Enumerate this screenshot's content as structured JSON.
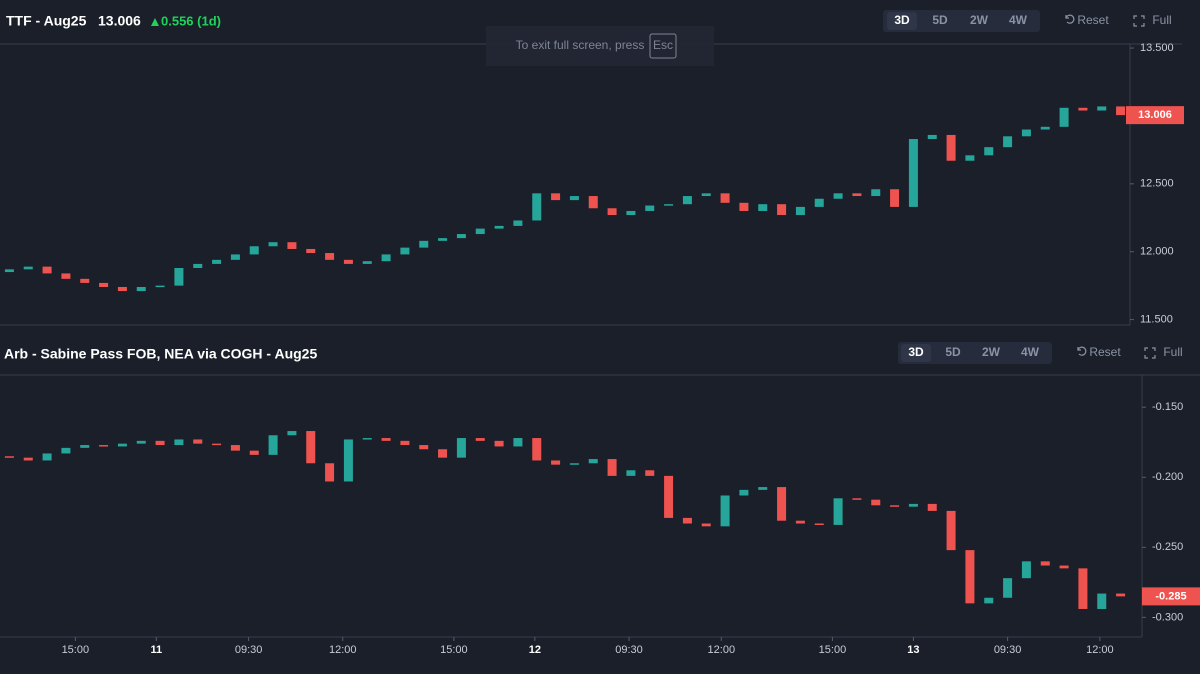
{
  "notice": {
    "text": "To exit full screen, press",
    "key": "Esc"
  },
  "chart_data": [
    {
      "type": "candlestick",
      "title": "TTF - Aug25",
      "change": "0.556 (1d)",
      "ranges": [
        "3D",
        "5D",
        "2W",
        "4W"
      ],
      "active_range": "3D",
      "buttons": [
        "Reset",
        "Full"
      ],
      "up_color": "#26a69a",
      "down_color": "#ef5350",
      "xlim": [
        -0.5,
        59.5
      ],
      "ylim": [
        11.46,
        13.53
      ],
      "yticks": [
        {
          "value": 11.5,
          "label": "11.500"
        },
        {
          "value": 12,
          "label": "12.000"
        },
        {
          "value": 12.5,
          "label": "12.500"
        },
        {
          "value": 13,
          "label": "13.000"
        },
        {
          "value": 13.5,
          "label": "13.500"
        }
      ],
      "open": [
        11.85,
        11.87,
        11.89,
        11.84,
        11.8,
        11.77,
        11.74,
        11.71,
        11.74,
        11.75,
        11.88,
        11.91,
        11.94,
        11.98,
        12.04,
        12.07,
        12.02,
        11.99,
        11.94,
        11.91,
        11.93,
        11.98,
        12.03,
        12.08,
        12.1,
        12.13,
        12.17,
        12.19,
        12.23,
        12.43,
        12.38,
        12.41,
        12.32,
        12.27,
        12.3,
        12.34,
        12.35,
        12.41,
        12.43,
        12.36,
        12.3,
        12.35,
        12.27,
        12.33,
        12.39,
        12.43,
        12.41,
        12.46,
        12.33,
        12.83,
        12.86,
        12.67,
        12.71,
        12.77,
        12.85,
        12.9,
        12.92,
        13.06,
        13.04,
        13.07
      ],
      "close": [
        11.87,
        11.89,
        11.84,
        11.8,
        11.77,
        11.74,
        11.71,
        11.74,
        11.75,
        11.88,
        11.91,
        11.94,
        11.98,
        12.04,
        12.07,
        12.02,
        11.99,
        11.94,
        11.91,
        11.93,
        11.98,
        12.03,
        12.08,
        12.1,
        12.13,
        12.17,
        12.19,
        12.23,
        12.43,
        12.38,
        12.41,
        12.32,
        12.27,
        12.3,
        12.34,
        12.35,
        12.41,
        12.43,
        12.36,
        12.3,
        12.35,
        12.27,
        12.33,
        12.39,
        12.43,
        12.41,
        12.46,
        12.33,
        12.83,
        12.86,
        12.67,
        12.71,
        12.77,
        12.85,
        12.9,
        12.92,
        13.06,
        13.04,
        13.07,
        13.006
      ]
    },
    {
      "type": "candlestick",
      "title": "Arb - Sabine Pass FOB, NEA via COGH - Aug25",
      "ranges": [
        "3D",
        "5D",
        "2W",
        "4W"
      ],
      "active_range": "3D",
      "buttons": [
        "Reset",
        "Full"
      ],
      "up_color": "#26a69a",
      "down_color": "#ef5350",
      "xlim": [
        -0.5,
        59.5
      ],
      "ylim": [
        -0.314,
        -0.127
      ],
      "yticks": [
        {
          "value": -0.15,
          "label": "-0.150"
        },
        {
          "value": -0.2,
          "label": "-0.200"
        },
        {
          "value": -0.25,
          "label": "-0.250"
        },
        {
          "value": -0.3,
          "label": "-0.300"
        }
      ],
      "xticks": [
        {
          "value": 3.5,
          "label": "15:00"
        },
        {
          "value": 7.8,
          "label": "11"
        },
        {
          "value": 12.7,
          "label": "09:30"
        },
        {
          "value": 17.7,
          "label": "12:00"
        },
        {
          "value": 23.6,
          "label": "15:00"
        },
        {
          "value": 27.9,
          "label": "12"
        },
        {
          "value": 32.9,
          "label": "09:30"
        },
        {
          "value": 37.8,
          "label": "12:00"
        },
        {
          "value": 43.7,
          "label": "15:00"
        },
        {
          "value": 48,
          "label": "13"
        },
        {
          "value": 53,
          "label": "09:30"
        },
        {
          "value": 57.9,
          "label": "12:00"
        }
      ],
      "open": [
        -0.185,
        -0.186,
        -0.188,
        -0.183,
        -0.179,
        -0.177,
        -0.178,
        -0.176,
        -0.174,
        -0.177,
        -0.173,
        -0.176,
        -0.177,
        -0.181,
        -0.184,
        -0.17,
        -0.167,
        -0.19,
        -0.203,
        -0.173,
        -0.172,
        -0.174,
        -0.177,
        -0.18,
        -0.186,
        -0.172,
        -0.174,
        -0.178,
        -0.172,
        -0.188,
        -0.191,
        -0.19,
        -0.187,
        -0.199,
        -0.195,
        -0.199,
        -0.229,
        -0.233,
        -0.235,
        -0.213,
        -0.209,
        -0.207,
        -0.231,
        -0.233,
        -0.234,
        -0.215,
        -0.216,
        -0.22,
        -0.221,
        -0.219,
        -0.224,
        -0.252,
        -0.29,
        -0.286,
        -0.272,
        -0.26,
        -0.263,
        -0.265,
        -0.294,
        -0.283
      ],
      "close": [
        -0.186,
        -0.188,
        -0.183,
        -0.179,
        -0.177,
        -0.178,
        -0.176,
        -0.174,
        -0.177,
        -0.173,
        -0.176,
        -0.177,
        -0.181,
        -0.184,
        -0.17,
        -0.167,
        -0.19,
        -0.203,
        -0.173,
        -0.172,
        -0.174,
        -0.177,
        -0.18,
        -0.186,
        -0.172,
        -0.174,
        -0.178,
        -0.172,
        -0.188,
        -0.191,
        -0.19,
        -0.187,
        -0.199,
        -0.195,
        -0.199,
        -0.229,
        -0.233,
        -0.235,
        -0.213,
        -0.209,
        -0.207,
        -0.231,
        -0.233,
        -0.234,
        -0.215,
        -0.216,
        -0.22,
        -0.221,
        -0.219,
        -0.224,
        -0.252,
        -0.29,
        -0.286,
        -0.272,
        -0.26,
        -0.263,
        -0.265,
        -0.294,
        -0.283,
        -0.285
      ]
    }
  ]
}
